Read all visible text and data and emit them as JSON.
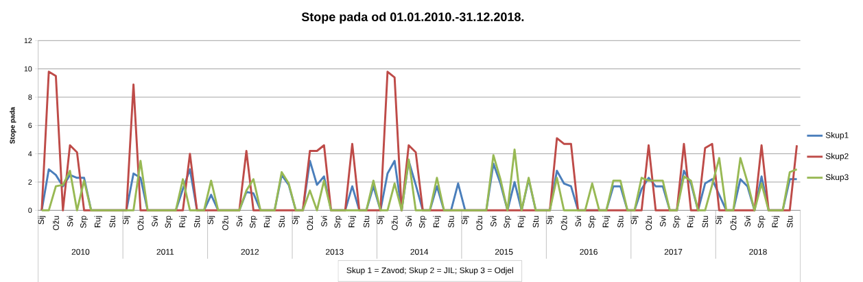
{
  "chart_data": {
    "type": "line",
    "title": "Stope pada od 01.01.2010.-31.12.2018.",
    "ylabel": "Stope pada",
    "categories": [
      "Sij",
      null,
      "Ožu",
      null,
      "Svi",
      null,
      "Srp",
      null,
      "Ruj",
      null,
      "Stu",
      null,
      "Sij",
      null,
      "Ožu",
      null,
      "Svi",
      null,
      "Srp",
      null,
      "Ruj",
      null,
      "Stu",
      null,
      "Sij",
      null,
      "Ožu",
      null,
      "Svi",
      null,
      "Srp",
      null,
      "Ruj",
      null,
      "Stu",
      null,
      "Sij",
      null,
      "Ožu",
      null,
      "Svi",
      null,
      "Srp",
      null,
      "Ruj",
      null,
      "Stu",
      null,
      "Sij",
      null,
      "Ožu",
      null,
      "Svi",
      null,
      "Srp",
      null,
      "Ruj",
      null,
      "Stu",
      null,
      "Sij",
      null,
      "Ožu",
      null,
      "Svi",
      null,
      "Srp",
      null,
      "Ruj",
      null,
      "Stu",
      null,
      "Sij",
      null,
      "Ožu",
      null,
      "Svi",
      null,
      "Srp",
      null,
      "Ruj",
      null,
      "Stu",
      null,
      "Sij",
      null,
      "Ožu",
      null,
      "Svi",
      null,
      "Srp",
      null,
      "Ruj",
      null,
      "Stu",
      null,
      "Sij",
      null,
      "Ožu",
      null,
      "Svi",
      null,
      "Srp",
      null,
      "Ruj",
      null,
      "Stu",
      null
    ],
    "series": [
      {
        "name": "Skup1",
        "color": "#4a7ebb",
        "values": [
          0,
          2.9,
          2.5,
          1.7,
          2.5,
          2.3,
          2.3,
          0,
          0,
          0,
          0,
          0,
          0,
          2.6,
          2.3,
          0,
          0,
          0,
          0,
          0,
          1.5,
          2.9,
          0,
          0,
          1.1,
          0,
          0,
          0,
          0,
          1.3,
          1.2,
          0,
          0,
          0,
          2.5,
          1.8,
          0,
          0,
          3.5,
          1.8,
          2.4,
          0,
          0,
          0,
          1.7,
          0,
          0,
          1.7,
          0,
          2.6,
          3.5,
          0,
          3.5,
          1.8,
          0,
          0,
          1.7,
          0,
          0,
          1.9,
          0,
          0,
          0,
          0,
          3.3,
          1.9,
          0,
          2.0,
          0,
          2.2,
          0,
          0,
          0,
          2.8,
          1.9,
          1.7,
          0,
          0,
          0,
          0,
          0,
          1.7,
          1.7,
          0,
          0,
          1.5,
          2.3,
          1.7,
          1.7,
          0,
          0,
          2.8,
          1.9,
          0,
          1.9,
          2.2,
          1.1,
          0,
          0,
          2.2,
          1.7,
          0,
          2.4,
          0,
          0,
          0,
          2.2,
          2.2
        ]
      },
      {
        "name": "Skup2",
        "color": "#be4b48",
        "values": [
          0,
          9.8,
          9.5,
          0,
          4.6,
          4.1,
          0,
          0,
          0,
          0,
          0,
          0,
          0,
          8.9,
          0,
          0,
          0,
          0,
          0,
          0,
          0,
          4.0,
          0,
          0,
          0,
          0,
          0,
          0,
          0,
          4.2,
          0,
          0,
          0,
          0,
          0,
          0,
          0,
          0,
          4.2,
          4.2,
          4.6,
          0,
          0,
          0,
          4.7,
          0,
          0,
          0,
          0,
          9.8,
          9.4,
          0,
          4.6,
          4.1,
          0,
          0,
          0,
          0,
          0,
          0,
          0,
          0,
          0,
          0,
          0,
          0,
          0,
          0,
          0,
          0,
          0,
          0,
          0,
          5.1,
          4.7,
          4.7,
          0,
          0,
          0,
          0,
          0,
          0,
          0,
          0,
          0,
          0,
          4.6,
          0,
          0,
          0,
          0,
          4.7,
          0,
          0,
          4.4,
          4.7,
          0,
          0,
          0,
          0,
          0,
          0,
          4.6,
          0,
          0,
          0,
          0,
          4.6
        ]
      },
      {
        "name": "Skup3",
        "color": "#98b954",
        "values": [
          0,
          0,
          1.7,
          1.8,
          2.8,
          0,
          2.1,
          0,
          0,
          0,
          0,
          0,
          0,
          0,
          3.5,
          0,
          0,
          0,
          0,
          0,
          2.2,
          0,
          0,
          0,
          2.1,
          0,
          0,
          0,
          0,
          1.4,
          2.2,
          0,
          0,
          0,
          2.7,
          1.9,
          0,
          0,
          1.4,
          0,
          2.1,
          0,
          0,
          0,
          0,
          0,
          0,
          2.1,
          0,
          0,
          1.9,
          0,
          3.6,
          0,
          0,
          0,
          2.3,
          0,
          0,
          0,
          0,
          0,
          0,
          0,
          3.9,
          2.2,
          0,
          4.3,
          0,
          2.3,
          0,
          0,
          0,
          2.3,
          0,
          0,
          0,
          0,
          1.9,
          0,
          0,
          2.1,
          2.1,
          0,
          0,
          2.3,
          2.1,
          2.1,
          2.1,
          0,
          0,
          2.4,
          2.1,
          0,
          0,
          1.8,
          3.7,
          0,
          0,
          3.7,
          2.0,
          0,
          1.9,
          0,
          0,
          0,
          2.7,
          2.9
        ]
      }
    ],
    "ylim": [
      0,
      12
    ],
    "yticks": [
      0,
      2,
      4,
      6,
      8,
      10,
      12
    ],
    "grid": "y",
    "legend": "right",
    "marker": "none",
    "line_style": "solid",
    "annotations": [
      "2010",
      "2011",
      "2012",
      "2013",
      "2014",
      "2015",
      "2016",
      "2017",
      "2018",
      "Skup 1 = Zavod; Skup 2 = JIL; Skup 3 = Odjel"
    ]
  }
}
